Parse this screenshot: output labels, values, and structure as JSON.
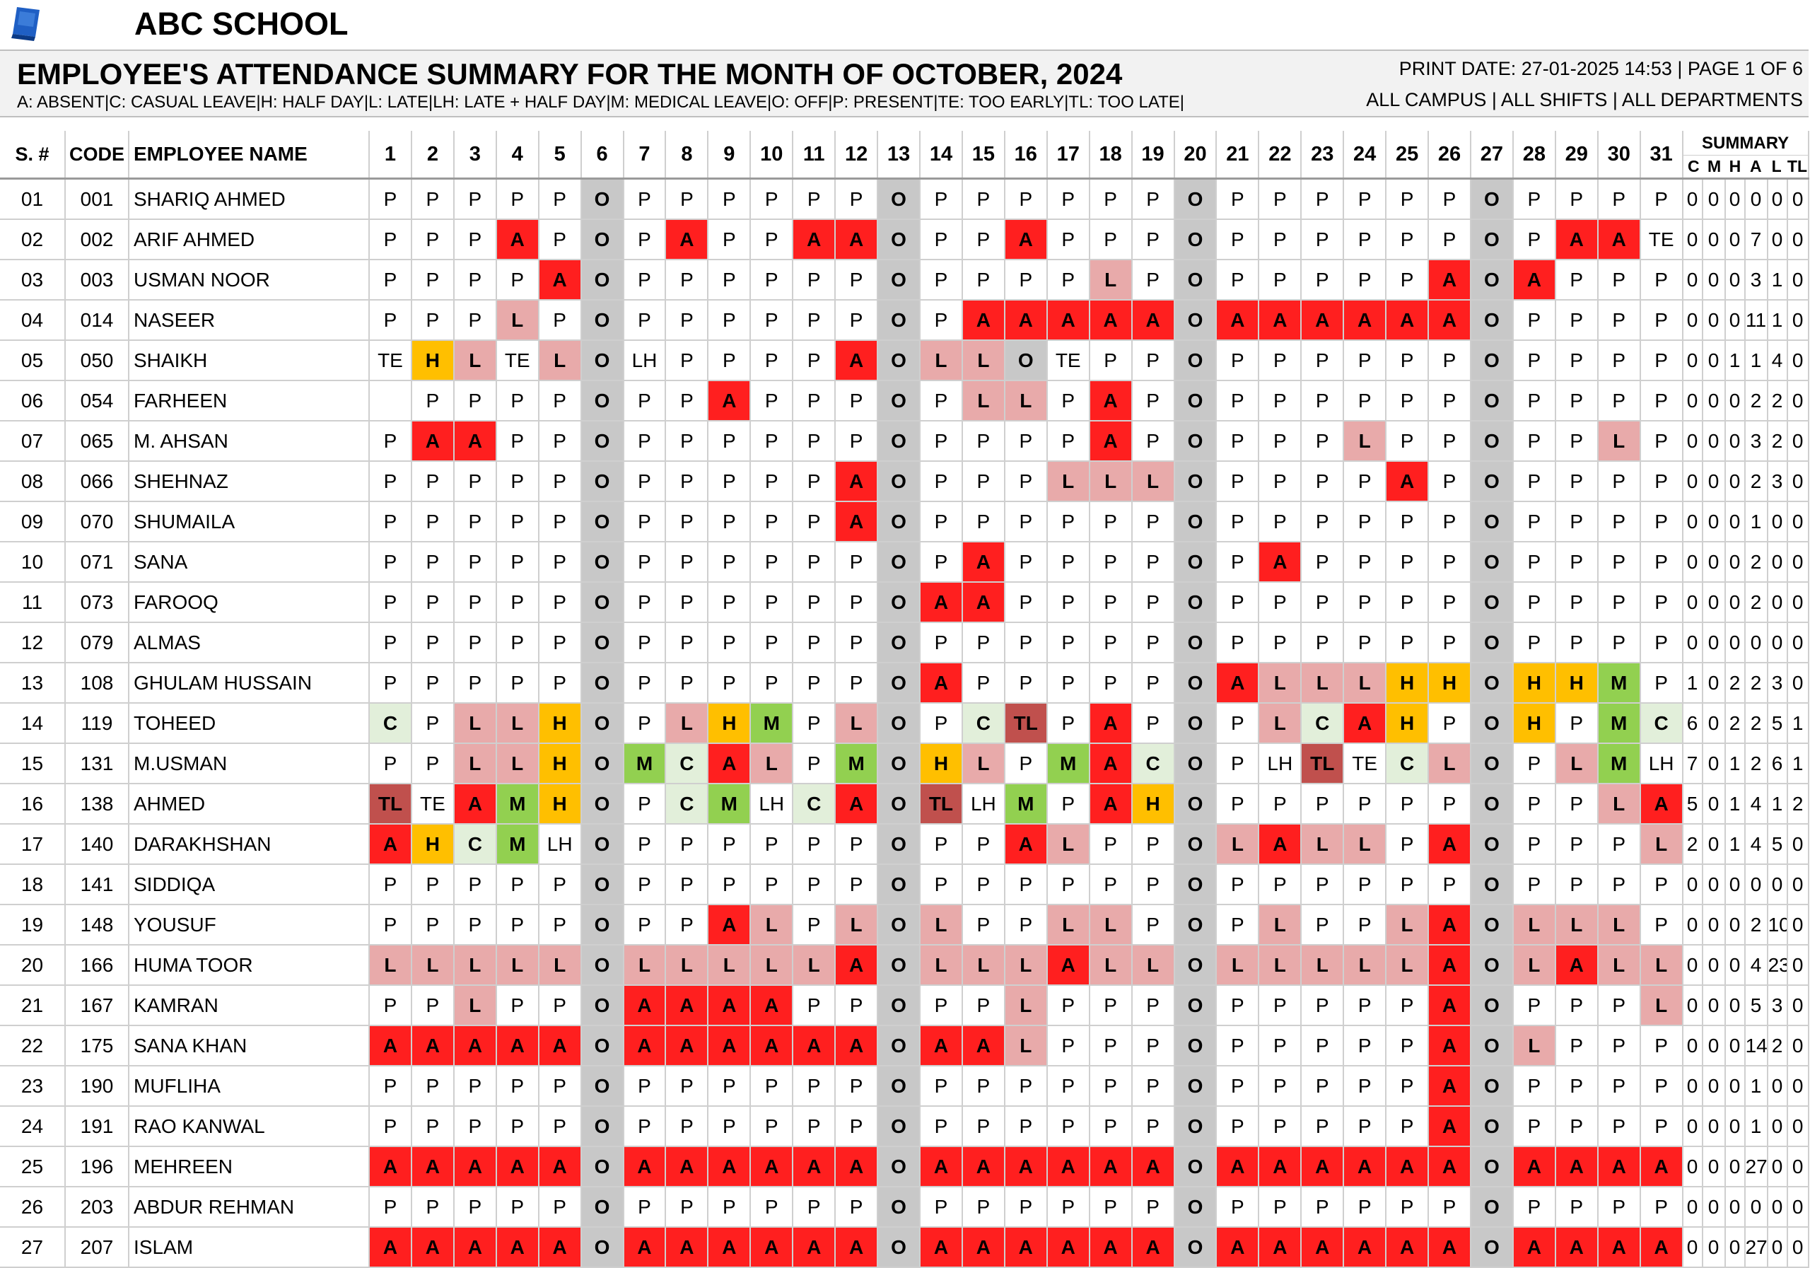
{
  "school": {
    "name": "ABC SCHOOL"
  },
  "report": {
    "title": "EMPLOYEE'S ATTENDANCE SUMMARY FOR THE MONTH OF OCTOBER, 2024",
    "legend": "A: ABSENT|C: CASUAL LEAVE|H: HALF DAY|L: LATE|LH: LATE + HALF DAY|M: MEDICAL LEAVE|O: OFF|P: PRESENT|TE: TOO EARLY|TL: TOO LATE|",
    "print_info": "PRINT DATE: 27-01-2025 14:53 | PAGE 1 OF 6",
    "filters": "ALL CAMPUS | ALL SHIFTS | ALL DEPARTMENTS"
  },
  "columns": {
    "sno": "S. #",
    "code": "CODE",
    "name": "EMPLOYEE NAME",
    "days": [
      "1",
      "2",
      "3",
      "4",
      "5",
      "6",
      "7",
      "8",
      "9",
      "10",
      "11",
      "12",
      "13",
      "14",
      "15",
      "16",
      "17",
      "18",
      "19",
      "20",
      "21",
      "22",
      "23",
      "24",
      "25",
      "26",
      "27",
      "28",
      "29",
      "30",
      "31"
    ],
    "summary_title": "SUMMARY",
    "summary": [
      "C",
      "M",
      "H",
      "A",
      "L",
      "TL"
    ]
  },
  "colors": {
    "A": "#ff1f1f",
    "L": "#e8aaaa",
    "O": "#c8c8c8",
    "H": "#ffbf00",
    "M": "#92d050",
    "C": "#e2efda",
    "TL": "#c0504d"
  },
  "rows": [
    {
      "sno": "01",
      "code": "001",
      "name": "SHARIQ AHMED",
      "days": [
        "P",
        "P",
        "P",
        "P",
        "P",
        "O",
        "P",
        "P",
        "P",
        "P",
        "P",
        "P",
        "O",
        "P",
        "P",
        "P",
        "P",
        "P",
        "P",
        "O",
        "P",
        "P",
        "P",
        "P",
        "P",
        "P",
        "O",
        "P",
        "P",
        "P",
        "P"
      ],
      "summary": [
        "0",
        "0",
        "0",
        "0",
        "0",
        "0"
      ]
    },
    {
      "sno": "02",
      "code": "002",
      "name": "ARIF AHMED",
      "days": [
        "P",
        "P",
        "P",
        "A",
        "P",
        "O",
        "P",
        "A",
        "P",
        "P",
        "A",
        "A",
        "O",
        "P",
        "P",
        "A",
        "P",
        "P",
        "P",
        "O",
        "P",
        "P",
        "P",
        "P",
        "P",
        "P",
        "O",
        "P",
        "A",
        "A",
        "TE"
      ],
      "summary": [
        "0",
        "0",
        "0",
        "7",
        "0",
        "0"
      ]
    },
    {
      "sno": "03",
      "code": "003",
      "name": "USMAN NOOR",
      "days": [
        "P",
        "P",
        "P",
        "P",
        "A",
        "O",
        "P",
        "P",
        "P",
        "P",
        "P",
        "P",
        "O",
        "P",
        "P",
        "P",
        "P",
        "L",
        "P",
        "O",
        "P",
        "P",
        "P",
        "P",
        "P",
        "A",
        "O",
        "A",
        "P",
        "P",
        "P"
      ],
      "summary": [
        "0",
        "0",
        "0",
        "3",
        "1",
        "0"
      ]
    },
    {
      "sno": "04",
      "code": "014",
      "name": "NASEER",
      "days": [
        "P",
        "P",
        "P",
        "L",
        "P",
        "O",
        "P",
        "P",
        "P",
        "P",
        "P",
        "P",
        "O",
        "P",
        "A",
        "A",
        "A",
        "A",
        "A",
        "O",
        "A",
        "A",
        "A",
        "A",
        "A",
        "A",
        "O",
        "P",
        "P",
        "P",
        "P"
      ],
      "summary": [
        "0",
        "0",
        "0",
        "11",
        "1",
        "0"
      ]
    },
    {
      "sno": "05",
      "code": "050",
      "name": "SHAIKH",
      "days": [
        "TE",
        "H",
        "L",
        "TE",
        "L",
        "O",
        "LH",
        "P",
        "P",
        "P",
        "P",
        "A",
        "O",
        "L",
        "L",
        "O",
        "TE",
        "P",
        "P",
        "O",
        "P",
        "P",
        "P",
        "P",
        "P",
        "P",
        "O",
        "P",
        "P",
        "P",
        "P"
      ],
      "summary": [
        "0",
        "0",
        "1",
        "1",
        "4",
        "0"
      ]
    },
    {
      "sno": "06",
      "code": "054",
      "name": "FARHEEN",
      "days": [
        "",
        "P",
        "P",
        "P",
        "P",
        "O",
        "P",
        "P",
        "A",
        "P",
        "P",
        "P",
        "O",
        "P",
        "L",
        "L",
        "P",
        "A",
        "P",
        "O",
        "P",
        "P",
        "P",
        "P",
        "P",
        "P",
        "O",
        "P",
        "P",
        "P",
        "P"
      ],
      "summary": [
        "0",
        "0",
        "0",
        "2",
        "2",
        "0"
      ]
    },
    {
      "sno": "07",
      "code": "065",
      "name": "M. AHSAN",
      "days": [
        "P",
        "A",
        "A",
        "P",
        "P",
        "O",
        "P",
        "P",
        "P",
        "P",
        "P",
        "P",
        "O",
        "P",
        "P",
        "P",
        "P",
        "A",
        "P",
        "O",
        "P",
        "P",
        "P",
        "L",
        "P",
        "P",
        "O",
        "P",
        "P",
        "L",
        "P"
      ],
      "summary": [
        "0",
        "0",
        "0",
        "3",
        "2",
        "0"
      ]
    },
    {
      "sno": "08",
      "code": "066",
      "name": "SHEHNAZ",
      "days": [
        "P",
        "P",
        "P",
        "P",
        "P",
        "O",
        "P",
        "P",
        "P",
        "P",
        "P",
        "A",
        "O",
        "P",
        "P",
        "P",
        "L",
        "L",
        "L",
        "O",
        "P",
        "P",
        "P",
        "P",
        "A",
        "P",
        "O",
        "P",
        "P",
        "P",
        "P"
      ],
      "summary": [
        "0",
        "0",
        "0",
        "2",
        "3",
        "0"
      ]
    },
    {
      "sno": "09",
      "code": "070",
      "name": "SHUMAILA",
      "days": [
        "P",
        "P",
        "P",
        "P",
        "P",
        "O",
        "P",
        "P",
        "P",
        "P",
        "P",
        "A",
        "O",
        "P",
        "P",
        "P",
        "P",
        "P",
        "P",
        "O",
        "P",
        "P",
        "P",
        "P",
        "P",
        "P",
        "O",
        "P",
        "P",
        "P",
        "P"
      ],
      "summary": [
        "0",
        "0",
        "0",
        "1",
        "0",
        "0"
      ]
    },
    {
      "sno": "10",
      "code": "071",
      "name": "SANA",
      "days": [
        "P",
        "P",
        "P",
        "P",
        "P",
        "O",
        "P",
        "P",
        "P",
        "P",
        "P",
        "P",
        "O",
        "P",
        "A",
        "P",
        "P",
        "P",
        "P",
        "O",
        "P",
        "A",
        "P",
        "P",
        "P",
        "P",
        "O",
        "P",
        "P",
        "P",
        "P"
      ],
      "summary": [
        "0",
        "0",
        "0",
        "2",
        "0",
        "0"
      ]
    },
    {
      "sno": "11",
      "code": "073",
      "name": "FAROOQ",
      "days": [
        "P",
        "P",
        "P",
        "P",
        "P",
        "O",
        "P",
        "P",
        "P",
        "P",
        "P",
        "P",
        "O",
        "A",
        "A",
        "P",
        "P",
        "P",
        "P",
        "O",
        "P",
        "P",
        "P",
        "P",
        "P",
        "P",
        "O",
        "P",
        "P",
        "P",
        "P"
      ],
      "summary": [
        "0",
        "0",
        "0",
        "2",
        "0",
        "0"
      ]
    },
    {
      "sno": "12",
      "code": "079",
      "name": "ALMAS",
      "days": [
        "P",
        "P",
        "P",
        "P",
        "P",
        "O",
        "P",
        "P",
        "P",
        "P",
        "P",
        "P",
        "O",
        "P",
        "P",
        "P",
        "P",
        "P",
        "P",
        "O",
        "P",
        "P",
        "P",
        "P",
        "P",
        "P",
        "O",
        "P",
        "P",
        "P",
        "P"
      ],
      "summary": [
        "0",
        "0",
        "0",
        "0",
        "0",
        "0"
      ]
    },
    {
      "sno": "13",
      "code": "108",
      "name": "GHULAM HUSSAIN",
      "days": [
        "P",
        "P",
        "P",
        "P",
        "P",
        "O",
        "P",
        "P",
        "P",
        "P",
        "P",
        "P",
        "O",
        "A",
        "P",
        "P",
        "P",
        "P",
        "P",
        "O",
        "A",
        "L",
        "L",
        "L",
        "H",
        "H",
        "O",
        "H",
        "H",
        "M",
        "P"
      ],
      "summary": [
        "1",
        "0",
        "2",
        "2",
        "3",
        "0"
      ]
    },
    {
      "sno": "14",
      "code": "119",
      "name": "TOHEED",
      "days": [
        "C",
        "P",
        "L",
        "L",
        "H",
        "O",
        "P",
        "L",
        "H",
        "M",
        "P",
        "L",
        "O",
        "P",
        "C",
        "TL",
        "P",
        "A",
        "P",
        "O",
        "P",
        "L",
        "C",
        "A",
        "H",
        "P",
        "O",
        "H",
        "P",
        "M",
        "C"
      ],
      "summary": [
        "6",
        "0",
        "2",
        "2",
        "5",
        "1"
      ]
    },
    {
      "sno": "15",
      "code": "131",
      "name": "M.USMAN",
      "days": [
        "P",
        "P",
        "L",
        "L",
        "H",
        "O",
        "M",
        "C",
        "A",
        "L",
        "P",
        "M",
        "O",
        "H",
        "L",
        "P",
        "M",
        "A",
        "C",
        "O",
        "P",
        "LH",
        "TL",
        "TE",
        "C",
        "L",
        "O",
        "P",
        "L",
        "M",
        "LH"
      ],
      "summary": [
        "7",
        "0",
        "1",
        "2",
        "6",
        "1"
      ]
    },
    {
      "sno": "16",
      "code": "138",
      "name": "AHMED",
      "days": [
        "TL",
        "TE",
        "A",
        "M",
        "H",
        "O",
        "P",
        "C",
        "M",
        "LH",
        "C",
        "A",
        "O",
        "TL",
        "LH",
        "M",
        "P",
        "A",
        "H",
        "O",
        "P",
        "P",
        "P",
        "P",
        "P",
        "P",
        "O",
        "P",
        "P",
        "L",
        "A"
      ],
      "summary": [
        "5",
        "0",
        "1",
        "4",
        "1",
        "2"
      ]
    },
    {
      "sno": "17",
      "code": "140",
      "name": "DARAKHSHAN",
      "days": [
        "A",
        "H",
        "C",
        "M",
        "LH",
        "O",
        "P",
        "P",
        "P",
        "P",
        "P",
        "P",
        "O",
        "P",
        "P",
        "A",
        "L",
        "P",
        "P",
        "O",
        "L",
        "A",
        "L",
        "L",
        "P",
        "A",
        "O",
        "P",
        "P",
        "P",
        "L"
      ],
      "summary": [
        "2",
        "0",
        "1",
        "4",
        "5",
        "0"
      ]
    },
    {
      "sno": "18",
      "code": "141",
      "name": "SIDDIQA",
      "days": [
        "P",
        "P",
        "P",
        "P",
        "P",
        "O",
        "P",
        "P",
        "P",
        "P",
        "P",
        "P",
        "O",
        "P",
        "P",
        "P",
        "P",
        "P",
        "P",
        "O",
        "P",
        "P",
        "P",
        "P",
        "P",
        "P",
        "O",
        "P",
        "P",
        "P",
        "P"
      ],
      "summary": [
        "0",
        "0",
        "0",
        "0",
        "0",
        "0"
      ]
    },
    {
      "sno": "19",
      "code": "148",
      "name": "YOUSUF",
      "days": [
        "P",
        "P",
        "P",
        "P",
        "P",
        "O",
        "P",
        "P",
        "A",
        "L",
        "P",
        "L",
        "O",
        "L",
        "P",
        "P",
        "L",
        "L",
        "P",
        "O",
        "P",
        "L",
        "P",
        "P",
        "L",
        "A",
        "O",
        "L",
        "L",
        "L",
        "P"
      ],
      "summary": [
        "0",
        "0",
        "0",
        "2",
        "10",
        "0"
      ]
    },
    {
      "sno": "20",
      "code": "166",
      "name": "HUMA TOOR",
      "days": [
        "L",
        "L",
        "L",
        "L",
        "L",
        "O",
        "L",
        "L",
        "L",
        "L",
        "L",
        "A",
        "O",
        "L",
        "L",
        "L",
        "A",
        "L",
        "L",
        "O",
        "L",
        "L",
        "L",
        "L",
        "L",
        "A",
        "O",
        "L",
        "A",
        "L",
        "L"
      ],
      "summary": [
        "0",
        "0",
        "0",
        "4",
        "23",
        "0"
      ]
    },
    {
      "sno": "21",
      "code": "167",
      "name": "KAMRAN",
      "days": [
        "P",
        "P",
        "L",
        "P",
        "P",
        "O",
        "A",
        "A",
        "A",
        "A",
        "P",
        "P",
        "O",
        "P",
        "P",
        "L",
        "P",
        "P",
        "P",
        "O",
        "P",
        "P",
        "P",
        "P",
        "P",
        "A",
        "O",
        "P",
        "P",
        "P",
        "L"
      ],
      "summary": [
        "0",
        "0",
        "0",
        "5",
        "3",
        "0"
      ]
    },
    {
      "sno": "22",
      "code": "175",
      "name": "SANA KHAN",
      "days": [
        "A",
        "A",
        "A",
        "A",
        "A",
        "O",
        "A",
        "A",
        "A",
        "A",
        "A",
        "A",
        "O",
        "A",
        "A",
        "L",
        "P",
        "P",
        "P",
        "O",
        "P",
        "P",
        "P",
        "P",
        "P",
        "A",
        "O",
        "L",
        "P",
        "P",
        "P"
      ],
      "summary": [
        "0",
        "0",
        "0",
        "14",
        "2",
        "0"
      ]
    },
    {
      "sno": "23",
      "code": "190",
      "name": "MUFLIHA",
      "days": [
        "P",
        "P",
        "P",
        "P",
        "P",
        "O",
        "P",
        "P",
        "P",
        "P",
        "P",
        "P",
        "O",
        "P",
        "P",
        "P",
        "P",
        "P",
        "P",
        "O",
        "P",
        "P",
        "P",
        "P",
        "P",
        "A",
        "O",
        "P",
        "P",
        "P",
        "P"
      ],
      "summary": [
        "0",
        "0",
        "0",
        "1",
        "0",
        "0"
      ]
    },
    {
      "sno": "24",
      "code": "191",
      "name": "RAO KANWAL",
      "days": [
        "P",
        "P",
        "P",
        "P",
        "P",
        "O",
        "P",
        "P",
        "P",
        "P",
        "P",
        "P",
        "O",
        "P",
        "P",
        "P",
        "P",
        "P",
        "P",
        "O",
        "P",
        "P",
        "P",
        "P",
        "P",
        "A",
        "O",
        "P",
        "P",
        "P",
        "P"
      ],
      "summary": [
        "0",
        "0",
        "0",
        "1",
        "0",
        "0"
      ]
    },
    {
      "sno": "25",
      "code": "196",
      "name": "MEHREEN",
      "days": [
        "A",
        "A",
        "A",
        "A",
        "A",
        "O",
        "A",
        "A",
        "A",
        "A",
        "A",
        "A",
        "O",
        "A",
        "A",
        "A",
        "A",
        "A",
        "A",
        "O",
        "A",
        "A",
        "A",
        "A",
        "A",
        "A",
        "O",
        "A",
        "A",
        "A",
        "A"
      ],
      "summary": [
        "0",
        "0",
        "0",
        "27",
        "0",
        "0"
      ]
    },
    {
      "sno": "26",
      "code": "203",
      "name": "ABDUR REHMAN",
      "days": [
        "P",
        "P",
        "P",
        "P",
        "P",
        "O",
        "P",
        "P",
        "P",
        "P",
        "P",
        "P",
        "O",
        "P",
        "P",
        "P",
        "P",
        "P",
        "P",
        "O",
        "P",
        "P",
        "P",
        "P",
        "P",
        "P",
        "O",
        "P",
        "P",
        "P",
        "P"
      ],
      "summary": [
        "0",
        "0",
        "0",
        "0",
        "0",
        "0"
      ]
    },
    {
      "sno": "27",
      "code": "207",
      "name": "ISLAM",
      "days": [
        "A",
        "A",
        "A",
        "A",
        "A",
        "O",
        "A",
        "A",
        "A",
        "A",
        "A",
        "A",
        "O",
        "A",
        "A",
        "A",
        "A",
        "A",
        "A",
        "O",
        "A",
        "A",
        "A",
        "A",
        "A",
        "A",
        "O",
        "A",
        "A",
        "A",
        "A"
      ],
      "summary": [
        "0",
        "0",
        "0",
        "27",
        "0",
        "0"
      ]
    }
  ]
}
